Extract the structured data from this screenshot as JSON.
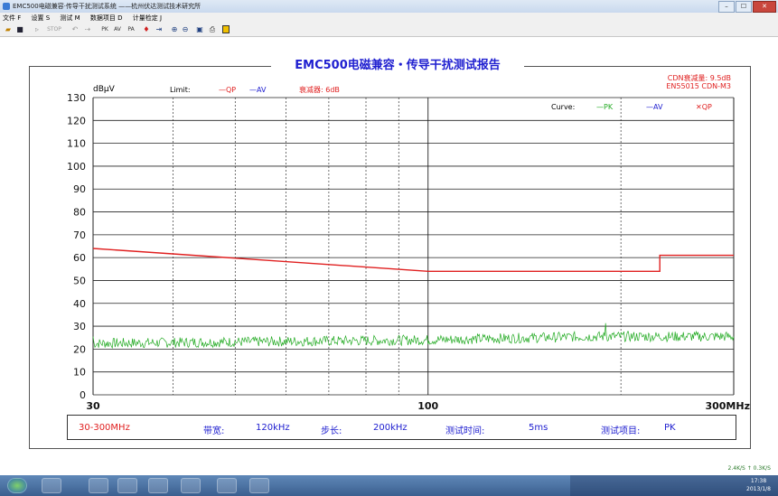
{
  "window": {
    "title": "EMC500电磁兼容·传导干扰测试系统 ——杭州伏达测试技术研究所",
    "btn_min": "–",
    "btn_max": "☐",
    "btn_close": "✕"
  },
  "menu": [
    "文件 F",
    "设置 S",
    "测试 M",
    "数据项目 D",
    "计量检定 J"
  ],
  "toolbar": {
    "stop_label": "STOP",
    "pk_label": "PK",
    "av_label": "AV",
    "pa_label": "PA"
  },
  "report": {
    "title": "EMC500电磁兼容・传导干扰测试报告",
    "cdn_line1": "CDN衰减量:  9.5dB",
    "cdn_line2": "EN55015 CDN-M3",
    "unit": "dBμV",
    "limit_label": "Limit:",
    "limit_qp": "—QP",
    "limit_av": "—AV",
    "attenuator": "衰减器:  6dB",
    "curve_label": "Curve:",
    "curve_pk": "—PK",
    "curve_av": "—AV",
    "curve_qp": "✕QP"
  },
  "chart_data": {
    "type": "line",
    "x_scale": "log",
    "xlim": [
      30,
      300
    ],
    "ylim": [
      0,
      130
    ],
    "ylabel": "dBμV",
    "y_ticks": [
      0,
      10,
      20,
      30,
      40,
      50,
      60,
      70,
      80,
      90,
      100,
      110,
      120,
      130
    ],
    "x_tick_labels": [
      "30",
      "100",
      "300MHz"
    ],
    "x_tick_values": [
      30,
      100,
      300
    ],
    "series": [
      {
        "name": "QP",
        "color": "#e02020",
        "x": [
          30,
          100,
          230,
          230,
          300
        ],
        "y": [
          64,
          54,
          54,
          61,
          61
        ]
      },
      {
        "name": "PK",
        "color": "#22aa22",
        "noisy": true,
        "x": [
          30,
          100,
          180,
          300
        ],
        "y": [
          22.5,
          24,
          25.5,
          25.5
        ]
      }
    ]
  },
  "info": {
    "range": "30-300MHz",
    "bandwidth_label": "带宽:",
    "bandwidth_value": "120kHz",
    "step_label": "步长:",
    "step_value": "200kHz",
    "time_label": "测试时间:",
    "time_value": "5ms",
    "item_label": "测试项目:",
    "item_value": "PK"
  },
  "tray": {
    "net": "2.4K/S  ↑ 0.3K/S",
    "time": "17:38",
    "date": "2013/1/8"
  }
}
